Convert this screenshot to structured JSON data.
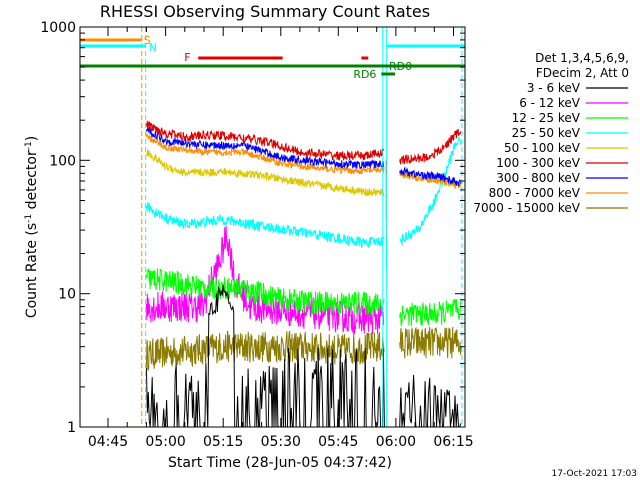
{
  "chart_data": {
    "type": "line",
    "title": "RHESSI Observing Summary Count Rates",
    "xlabel": "Start Time (28-Jun-05 04:37:42)",
    "ylabel": "Count Rate (s",
    "ylabel_sup1": "-1",
    "ylabel_mid": " detector",
    "ylabel_sup2": "-1",
    "ylabel_end": ")",
    "yscale": "log",
    "ylim": [
      1,
      1000
    ],
    "xlim_minutes": [
      277.7,
      378
    ],
    "x_ticks": [
      {
        "label": "04:45",
        "min": 285
      },
      {
        "label": "05:00",
        "min": 300
      },
      {
        "label": "05:15",
        "min": 315
      },
      {
        "label": "05:30",
        "min": 330
      },
      {
        "label": "05:45",
        "min": 345
      },
      {
        "label": "06:00",
        "min": 360
      },
      {
        "label": "06:15",
        "min": 375
      }
    ],
    "y_ticks": [
      {
        "label": "1",
        "v": 1
      },
      {
        "label": "10",
        "v": 10
      },
      {
        "label": "100",
        "v": 100
      },
      {
        "label": "1000",
        "v": 1000
      }
    ],
    "legend_header": [
      "Det 1,3,4,5,6,9,",
      "FDecim 2, Att 0"
    ],
    "legend_placement": "right",
    "series": [
      {
        "name": "3 - 6 keV",
        "color": "#000000"
      },
      {
        "name": "6 - 12 keV",
        "color": "#ff00ff"
      },
      {
        "name": "12 - 25 keV",
        "color": "#00ff00"
      },
      {
        "name": "25 - 50 keV",
        "color": "#00ffff"
      },
      {
        "name": "50 - 100 keV",
        "color": "#dcc800"
      },
      {
        "name": "100 - 300 keV",
        "color": "#e00000"
      },
      {
        "name": "300 - 800 keV",
        "color": "#0000ff"
      },
      {
        "name": "800 - 7000 keV",
        "color": "#ff8c00"
      },
      {
        "name": "7000 - 15000 keV",
        "color": "#8b7a00"
      }
    ],
    "flags": {
      "S": "S",
      "N": "N",
      "F": "F",
      "RD0": "RD0",
      "RD6": "RD6"
    },
    "timestamp": "17-Oct-2021 17:03"
  }
}
